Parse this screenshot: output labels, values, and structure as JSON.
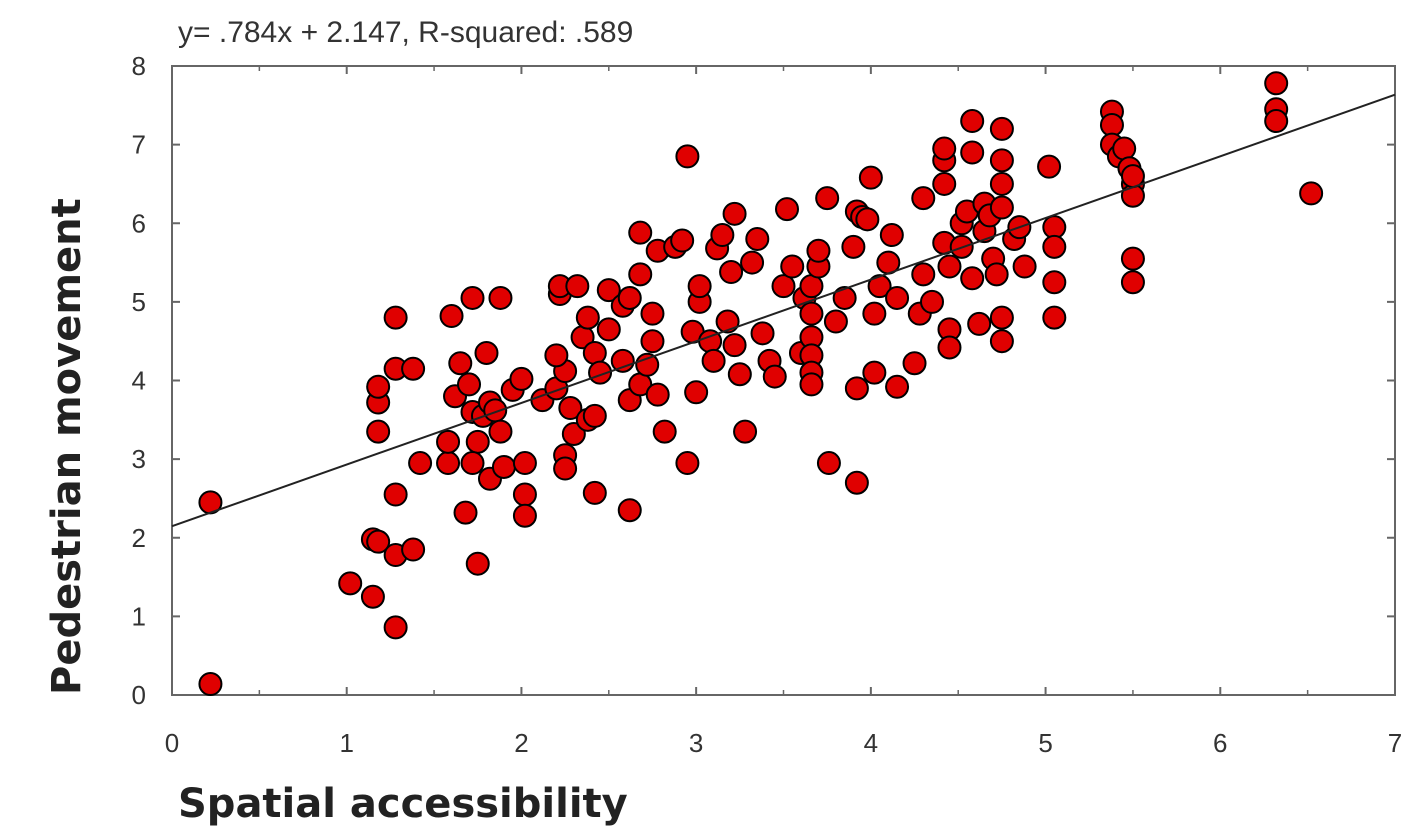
{
  "chart_data": {
    "type": "scatter",
    "title": "y= .784x + 2.147, R-squared: .589",
    "xlabel": "Spatial accessibility",
    "ylabel": "Pedestrian movement",
    "xlim": [
      0,
      7
    ],
    "ylim": [
      0,
      8
    ],
    "xticks": [
      "0",
      "1",
      "2",
      "3",
      "4",
      "5",
      "6",
      "7"
    ],
    "yticks": [
      "0",
      "1",
      "2",
      "3",
      "4",
      "5",
      "6",
      "7",
      "8"
    ],
    "grid": false,
    "legend": "none",
    "marker_color": "#e00000",
    "marker_edge": "#000000",
    "fit_line": {
      "slope": 0.784,
      "intercept": 2.147,
      "r_squared": 0.589,
      "color": "#222222"
    },
    "points": [
      [
        0.22,
        0.14
      ],
      [
        0.22,
        2.45
      ],
      [
        1.02,
        1.42
      ],
      [
        1.15,
        1.25
      ],
      [
        1.28,
        0.86
      ],
      [
        1.15,
        1.98
      ],
      [
        1.18,
        1.95
      ],
      [
        1.28,
        1.78
      ],
      [
        1.38,
        1.85
      ],
      [
        1.28,
        2.55
      ],
      [
        1.42,
        2.95
      ],
      [
        1.18,
        3.35
      ],
      [
        1.18,
        3.72
      ],
      [
        1.18,
        3.92
      ],
      [
        1.28,
        4.15
      ],
      [
        1.38,
        4.15
      ],
      [
        1.28,
        4.8
      ],
      [
        1.6,
        4.82
      ],
      [
        1.72,
        5.05
      ],
      [
        1.88,
        5.05
      ],
      [
        1.58,
        2.95
      ],
      [
        1.68,
        2.32
      ],
      [
        1.58,
        3.22
      ],
      [
        1.62,
        3.8
      ],
      [
        1.65,
        4.22
      ],
      [
        1.7,
        3.95
      ],
      [
        1.72,
        3.6
      ],
      [
        1.75,
        3.22
      ],
      [
        1.78,
        3.55
      ],
      [
        1.8,
        4.35
      ],
      [
        1.82,
        3.72
      ],
      [
        1.85,
        3.62
      ],
      [
        1.88,
        3.35
      ],
      [
        1.72,
        2.95
      ],
      [
        1.82,
        2.75
      ],
      [
        1.9,
        2.9
      ],
      [
        1.95,
        3.88
      ],
      [
        2.0,
        4.02
      ],
      [
        2.02,
        2.55
      ],
      [
        2.02,
        2.28
      ],
      [
        2.02,
        2.95
      ],
      [
        1.75,
        1.67
      ],
      [
        2.12,
        3.75
      ],
      [
        2.2,
        3.9
      ],
      [
        2.25,
        4.12
      ],
      [
        2.2,
        4.32
      ],
      [
        2.22,
        5.1
      ],
      [
        2.22,
        5.2
      ],
      [
        2.32,
        5.2
      ],
      [
        2.28,
        3.65
      ],
      [
        2.3,
        3.32
      ],
      [
        2.25,
        3.05
      ],
      [
        2.25,
        2.88
      ],
      [
        2.38,
        3.5
      ],
      [
        2.42,
        3.55
      ],
      [
        2.35,
        4.55
      ],
      [
        2.38,
        4.8
      ],
      [
        2.42,
        4.35
      ],
      [
        2.45,
        4.1
      ],
      [
        2.5,
        4.65
      ],
      [
        2.5,
        5.15
      ],
      [
        2.58,
        4.95
      ],
      [
        2.62,
        5.05
      ],
      [
        2.62,
        3.75
      ],
      [
        2.62,
        2.35
      ],
      [
        2.58,
        4.25
      ],
      [
        2.68,
        3.95
      ],
      [
        2.68,
        5.35
      ],
      [
        2.68,
        5.88
      ],
      [
        2.78,
        5.65
      ],
      [
        2.88,
        5.7
      ],
      [
        2.92,
        5.78
      ],
      [
        2.72,
        4.2
      ],
      [
        2.75,
        4.5
      ],
      [
        2.75,
        4.85
      ],
      [
        2.78,
        3.82
      ],
      [
        2.82,
        3.35
      ],
      [
        2.42,
        2.57
      ],
      [
        2.95,
        6.85
      ],
      [
        2.95,
        2.95
      ],
      [
        3.0,
        3.85
      ],
      [
        2.98,
        4.62
      ],
      [
        3.02,
        5.0
      ],
      [
        3.02,
        5.2
      ],
      [
        3.08,
        4.5
      ],
      [
        3.1,
        4.25
      ],
      [
        3.12,
        5.68
      ],
      [
        3.15,
        5.85
      ],
      [
        3.22,
        6.12
      ],
      [
        3.2,
        5.38
      ],
      [
        3.18,
        4.75
      ],
      [
        3.22,
        4.45
      ],
      [
        3.25,
        4.08
      ],
      [
        3.28,
        3.35
      ],
      [
        3.32,
        5.5
      ],
      [
        3.35,
        5.8
      ],
      [
        3.38,
        4.6
      ],
      [
        3.42,
        4.25
      ],
      [
        3.45,
        4.05
      ],
      [
        3.5,
        5.2
      ],
      [
        3.52,
        6.18
      ],
      [
        3.55,
        5.45
      ],
      [
        3.6,
        4.35
      ],
      [
        3.62,
        5.05
      ],
      [
        3.66,
        5.2
      ],
      [
        3.66,
        4.85
      ],
      [
        3.66,
        4.55
      ],
      [
        3.66,
        4.32
      ],
      [
        3.66,
        4.1
      ],
      [
        3.66,
        3.95
      ],
      [
        3.7,
        5.45
      ],
      [
        3.7,
        5.65
      ],
      [
        3.75,
        6.32
      ],
      [
        3.76,
        2.95
      ],
      [
        3.8,
        4.75
      ],
      [
        3.85,
        5.05
      ],
      [
        3.9,
        5.7
      ],
      [
        3.92,
        6.15
      ],
      [
        3.95,
        6.08
      ],
      [
        3.92,
        3.9
      ],
      [
        3.92,
        2.7
      ],
      [
        3.98,
        6.05
      ],
      [
        4.0,
        6.58
      ],
      [
        4.02,
        4.85
      ],
      [
        4.02,
        4.1
      ],
      [
        4.05,
        5.2
      ],
      [
        4.1,
        5.5
      ],
      [
        4.12,
        5.85
      ],
      [
        4.15,
        5.05
      ],
      [
        4.15,
        3.92
      ],
      [
        4.25,
        4.22
      ],
      [
        4.28,
        4.85
      ],
      [
        4.3,
        5.35
      ],
      [
        4.3,
        6.32
      ],
      [
        4.35,
        5.0
      ],
      [
        4.42,
        5.75
      ],
      [
        4.42,
        6.5
      ],
      [
        4.42,
        6.8
      ],
      [
        4.42,
        6.95
      ],
      [
        4.45,
        5.45
      ],
      [
        4.45,
        4.65
      ],
      [
        4.45,
        4.42
      ],
      [
        4.52,
        6.0
      ],
      [
        4.52,
        5.7
      ],
      [
        4.55,
        6.15
      ],
      [
        4.58,
        6.9
      ],
      [
        4.58,
        7.3
      ],
      [
        4.58,
        5.3
      ],
      [
        4.62,
        4.72
      ],
      [
        4.65,
        6.25
      ],
      [
        4.65,
        5.9
      ],
      [
        4.68,
        6.1
      ],
      [
        4.7,
        5.55
      ],
      [
        4.72,
        5.35
      ],
      [
        4.75,
        7.2
      ],
      [
        4.75,
        6.8
      ],
      [
        4.75,
        6.5
      ],
      [
        4.75,
        6.2
      ],
      [
        4.75,
        4.8
      ],
      [
        4.75,
        4.5
      ],
      [
        4.82,
        5.8
      ],
      [
        4.85,
        5.95
      ],
      [
        4.88,
        5.45
      ],
      [
        5.02,
        6.72
      ],
      [
        5.05,
        5.95
      ],
      [
        5.05,
        5.7
      ],
      [
        5.05,
        5.25
      ],
      [
        5.05,
        4.8
      ],
      [
        5.38,
        7.42
      ],
      [
        5.38,
        7.25
      ],
      [
        5.38,
        7.0
      ],
      [
        5.42,
        6.85
      ],
      [
        5.45,
        6.95
      ],
      [
        5.48,
        6.7
      ],
      [
        5.5,
        6.5
      ],
      [
        5.5,
        6.35
      ],
      [
        5.5,
        5.55
      ],
      [
        5.5,
        5.25
      ],
      [
        5.5,
        6.6
      ],
      [
        6.32,
        7.78
      ],
      [
        6.32,
        7.45
      ],
      [
        6.32,
        7.3
      ],
      [
        6.52,
        6.38
      ]
    ]
  }
}
